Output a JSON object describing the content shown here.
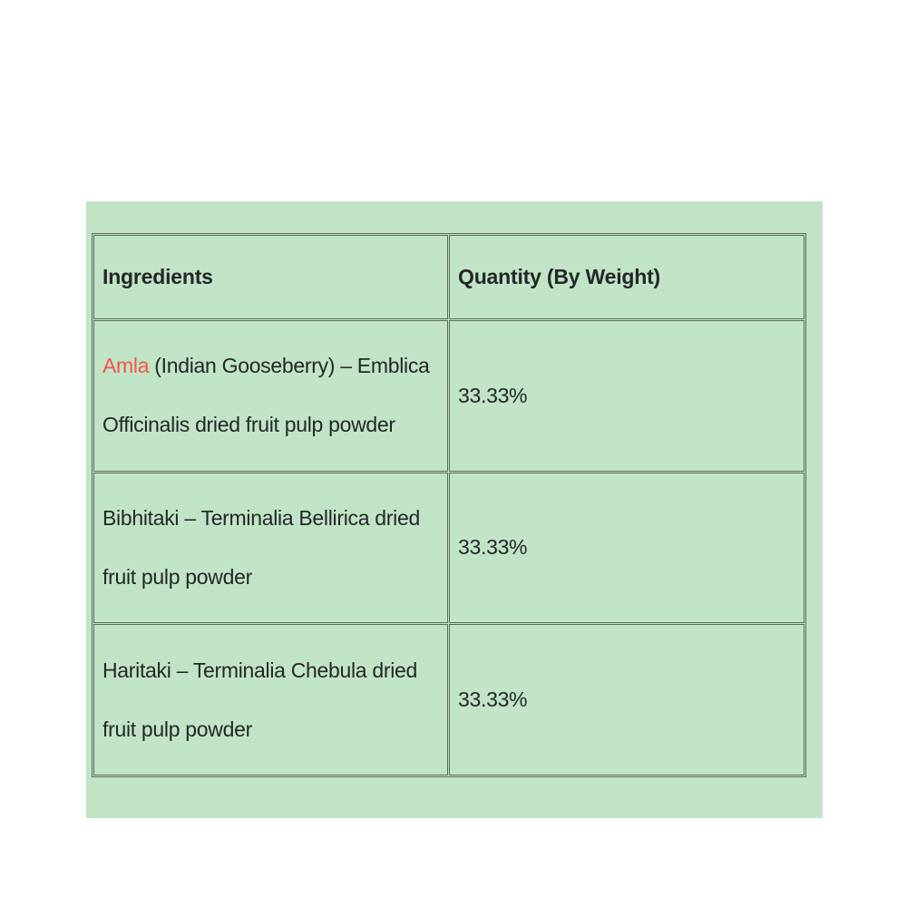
{
  "page": {
    "background_color": "#ffffff",
    "panel_color": "#c2e4c6",
    "border_color": "#5a6a5e",
    "text_color": "#23272a",
    "highlight_color": "#f2544a"
  },
  "table": {
    "headers": [
      "Ingredients",
      "Quantity (By Weight)"
    ],
    "rows": [
      {
        "ingredient_highlight": "Amla",
        "ingredient_rest": " (Indian Gooseberry) – Emblica\nOfficinalis dried fruit pulp powder",
        "quantity": "33.33%"
      },
      {
        "ingredient_highlight": "",
        "ingredient_rest": "Bibhitaki – Terminalia Bellirica dried\nfruit pulp powder",
        "quantity": "33.33%"
      },
      {
        "ingredient_highlight": "",
        "ingredient_rest": "Haritaki – Terminalia Chebula dried\nfruit pulp powder",
        "quantity": "33.33%"
      }
    ]
  }
}
